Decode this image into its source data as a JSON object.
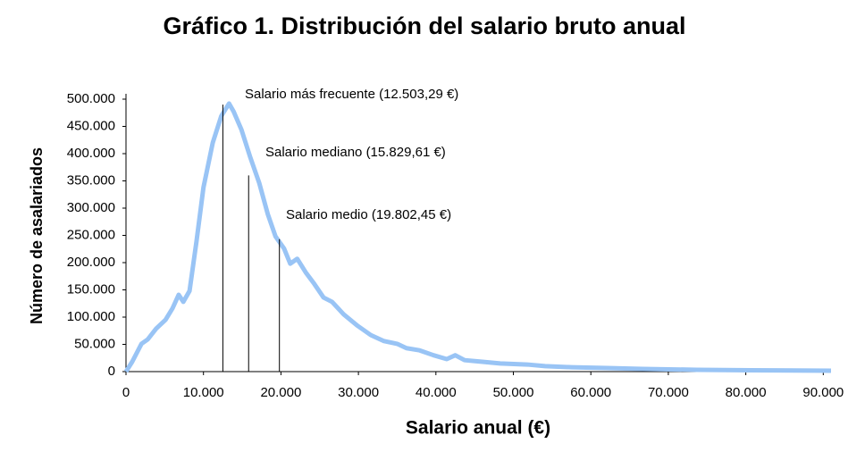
{
  "chart_data": {
    "type": "line",
    "title": "Gráfico 1. Distribución del salario bruto anual",
    "x_label": "Salario anual (€)",
    "y_label": "Número de asalariados",
    "x": [
      0,
      800,
      2000,
      2800,
      3900,
      5100,
      6000,
      6800,
      7400,
      8200,
      9100,
      10000,
      11200,
      12300,
      13300,
      13900,
      14900,
      16000,
      17200,
      18300,
      19300,
      20400,
      21200,
      22100,
      23200,
      24300,
      25500,
      26600,
      28100,
      29900,
      31600,
      33300,
      35000,
      36200,
      37900,
      39700,
      41400,
      42500,
      43700,
      46000,
      48300,
      51800,
      54100,
      57500,
      62100,
      66700,
      73700,
      80600,
      91000
    ],
    "series": [
      {
        "color": "#99c4f5",
        "values": [
          0,
          18000,
          51000,
          59000,
          79000,
          95000,
          116000,
          141000,
          128000,
          148000,
          239000,
          338000,
          420000,
          469000,
          492000,
          477000,
          444000,
          395000,
          346000,
          289000,
          248000,
          226000,
          198000,
          207000,
          182000,
          161000,
          136000,
          128000,
          105000,
          84000,
          67000,
          56000,
          51000,
          43000,
          39000,
          30000,
          23000,
          30000,
          21000,
          18000,
          15000,
          13000,
          10000,
          8000,
          6600,
          5000,
          3300,
          2500,
          1600
        ]
      }
    ],
    "xlim": [
      0,
      91000
    ],
    "ylim": [
      0,
      500000
    ],
    "xticks": [
      0,
      {
        "value": 10000,
        "label": "10.000"
      },
      {
        "value": 20000,
        "label": "20.000"
      },
      {
        "value": 30000,
        "label": "30.000"
      },
      {
        "value": 40000,
        "label": "40.000"
      },
      {
        "value": 50000,
        "label": "50.000"
      },
      {
        "value": 60000,
        "label": "60.000"
      },
      {
        "value": 70000,
        "label": "70.000"
      },
      {
        "value": 80000,
        "label": "80.000"
      },
      {
        "value": 90000,
        "label": "90.000"
      }
    ],
    "yticks": [
      0,
      {
        "value": 50000,
        "label": "50.000"
      },
      {
        "value": 100000,
        "label": "100.000"
      },
      {
        "value": 150000,
        "label": "150.000"
      },
      {
        "value": 200000,
        "label": "200.000"
      },
      {
        "value": 250000,
        "label": "250.000"
      },
      {
        "value": 300000,
        "label": "300.000"
      },
      {
        "value": 350000,
        "label": "350.000"
      },
      {
        "value": 400000,
        "label": "400.000"
      },
      {
        "value": 450000,
        "label": "450.000"
      },
      {
        "value": 500000,
        "label": "500.000"
      }
    ],
    "annotations": [
      {
        "text": "Salario más frecuente (12.503,29 €)",
        "x": 12503.29,
        "y": 490000
      },
      {
        "text": "Salario mediano (15.829,61 €)",
        "x": 15829.61,
        "y": 360000
      },
      {
        "text": "Salario medio (19.802,45 €)",
        "x": 19802.45,
        "y": 243000
      }
    ]
  }
}
